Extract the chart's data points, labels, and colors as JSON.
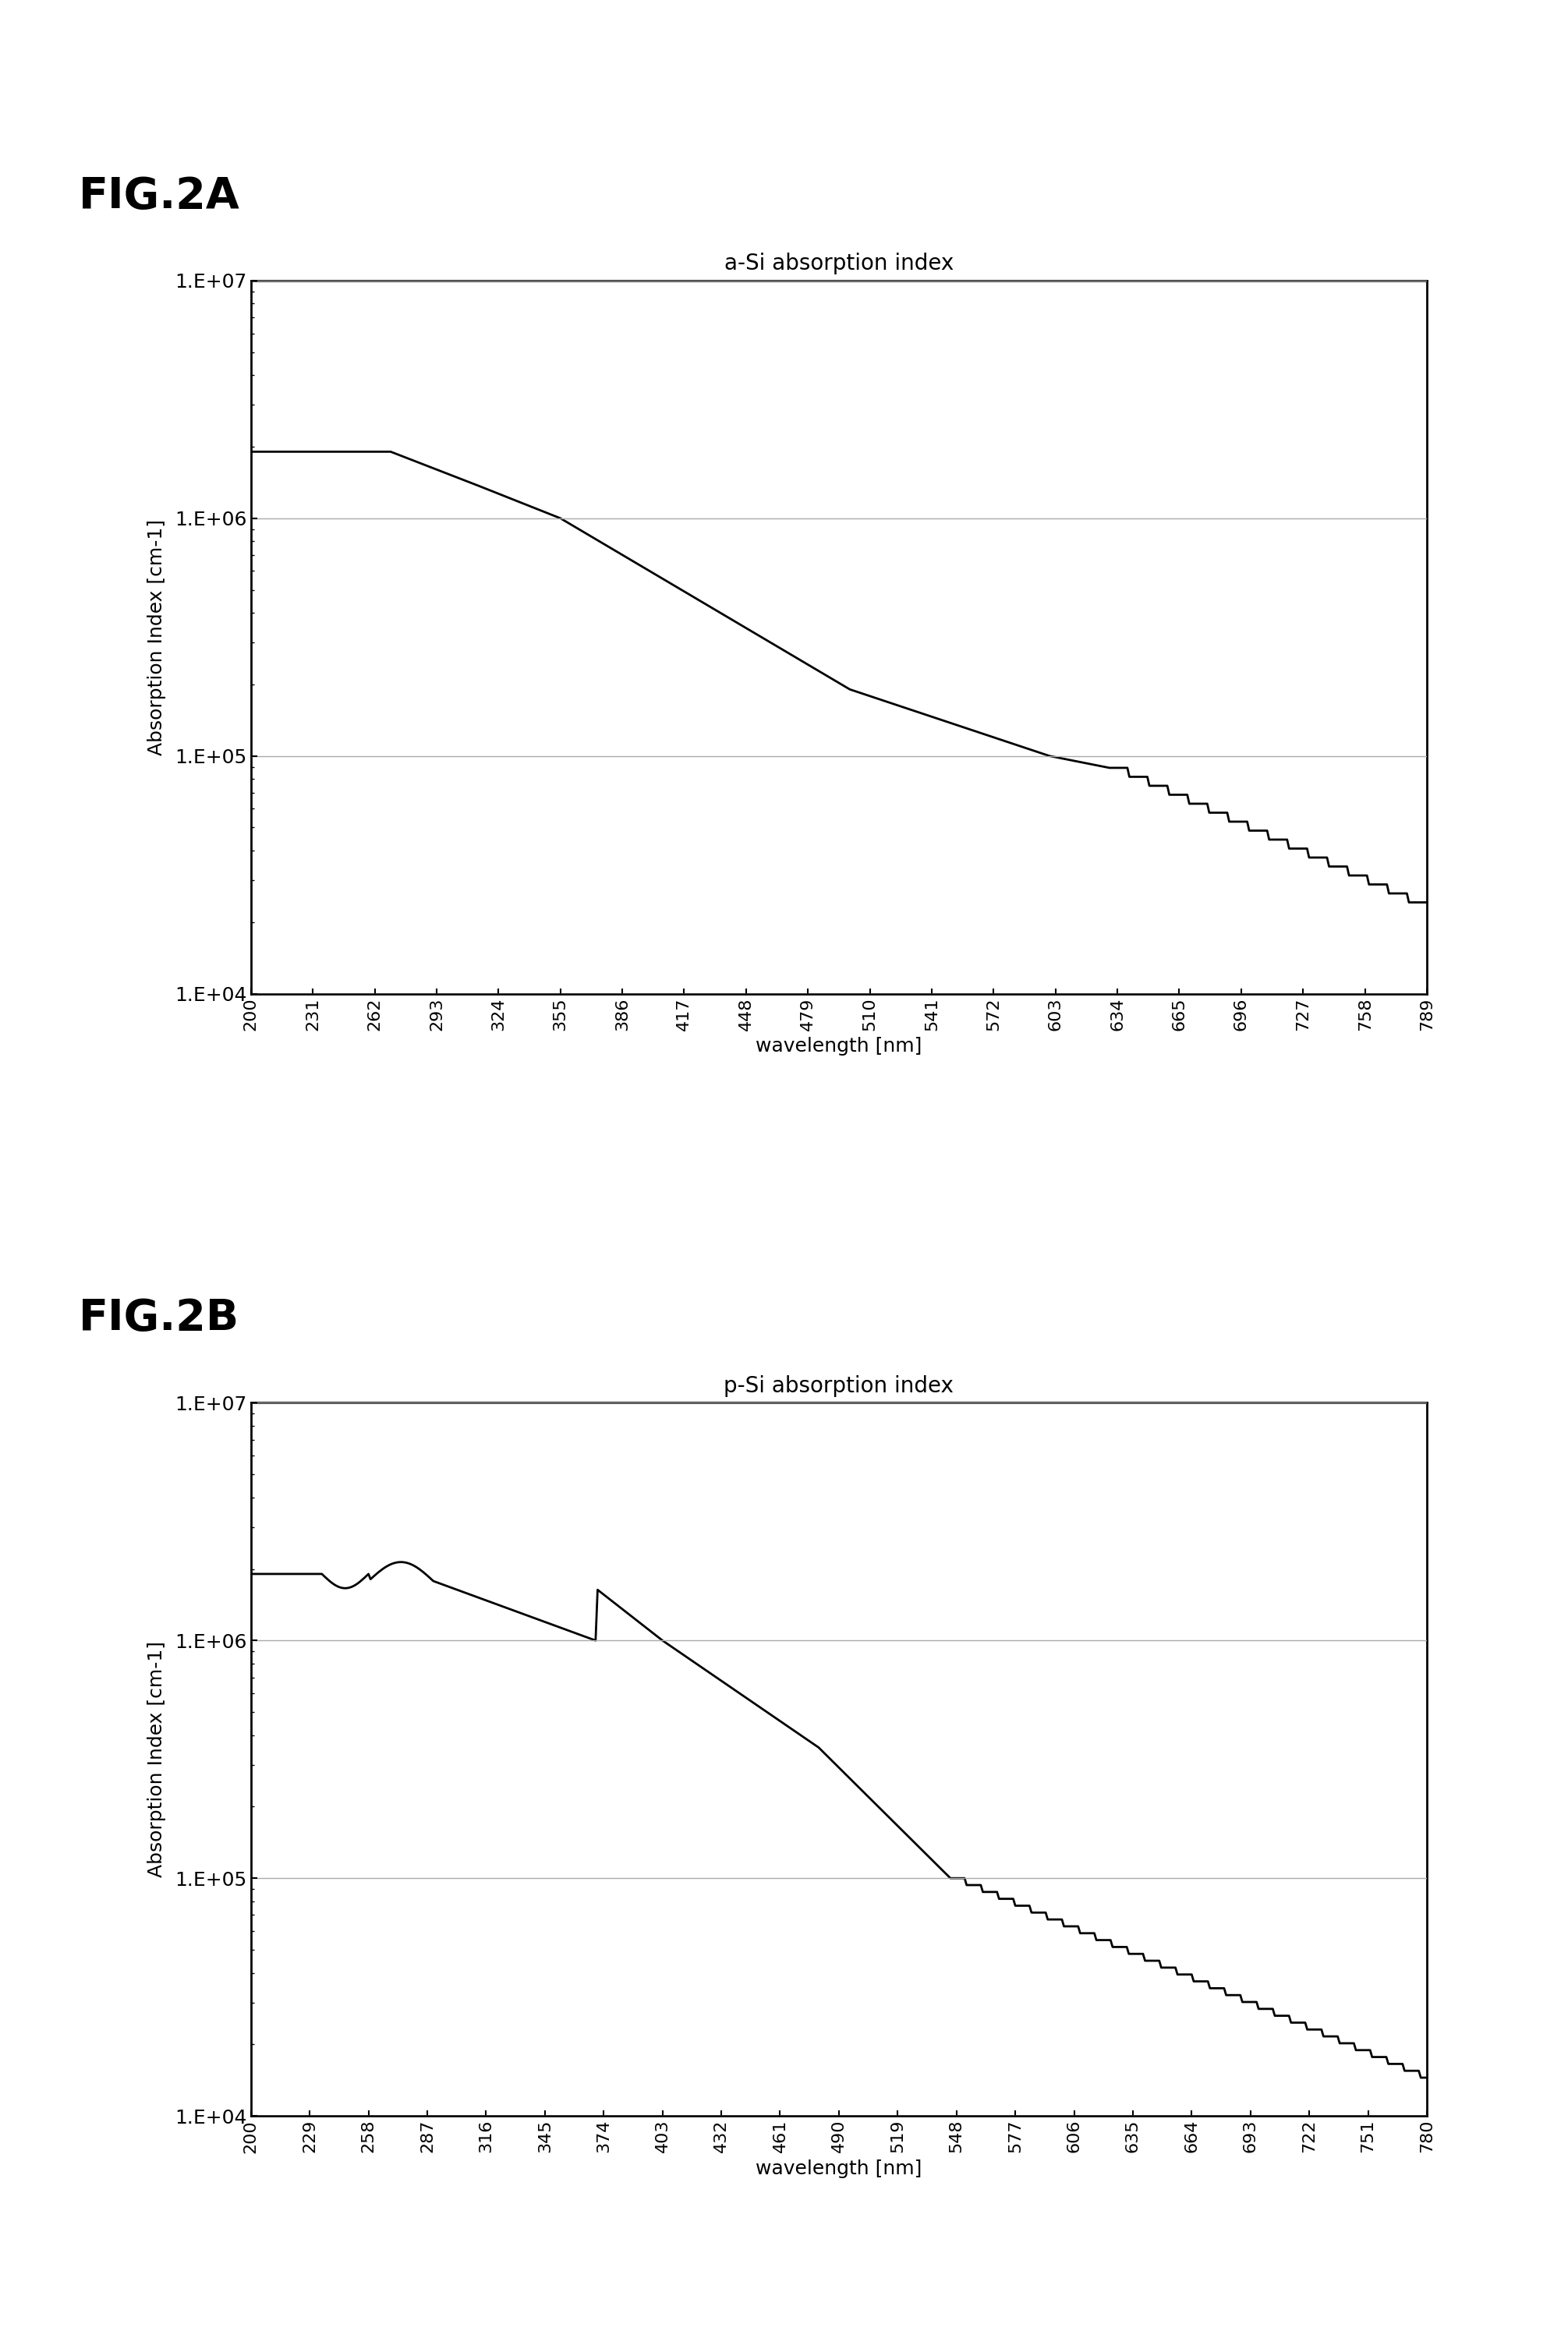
{
  "fig2a_title": "a-Si absorption index",
  "fig2b_title": "p-Si absorption index",
  "ylabel": "Absorption Index [cm-1]",
  "xlabel": "wavelength [nm]",
  "fig2a_label": "FIG.2A",
  "fig2b_label": "FIG.2B",
  "xticks_2a": [
    200,
    231,
    262,
    293,
    324,
    355,
    386,
    417,
    448,
    479,
    510,
    541,
    572,
    603,
    634,
    665,
    696,
    727,
    758,
    789
  ],
  "xticks_2b": [
    200,
    229,
    258,
    287,
    316,
    345,
    374,
    403,
    432,
    461,
    490,
    519,
    548,
    577,
    606,
    635,
    664,
    693,
    722,
    751,
    780
  ],
  "ylim_log": [
    10000.0,
    10000000.0
  ],
  "yticks": [
    10000.0,
    100000.0,
    1000000.0,
    10000000.0
  ],
  "ytick_labels": [
    "1.E+04",
    "1.E+05",
    "1.E+06",
    "1.E+07"
  ],
  "background": "#ffffff",
  "line_color": "#000000",
  "grid_color": "#aaaaaa"
}
